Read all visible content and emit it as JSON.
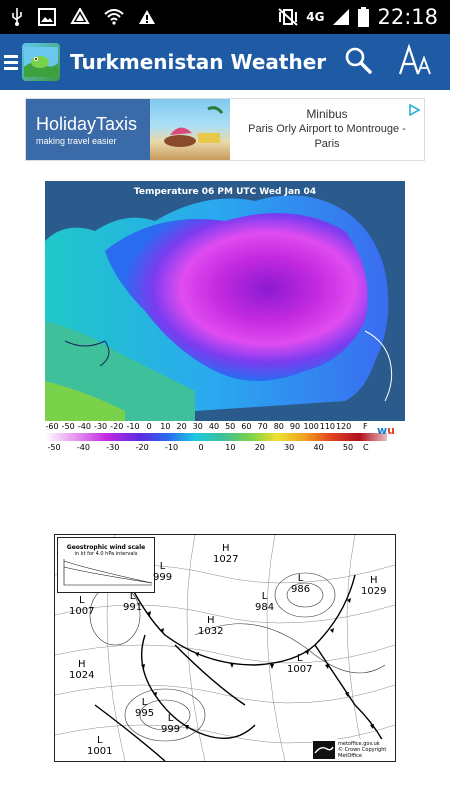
{
  "status_bar": {
    "time": "22:18",
    "network": "4G"
  },
  "app_bar": {
    "title": "Turkmenistan Weather"
  },
  "ad": {
    "brand": "HolidayTaxis",
    "tagline": "making travel easier",
    "title": "Minibus",
    "description": "Paris Orly Airport to Montrouge - Paris"
  },
  "temperature_map": {
    "title": "Temperature 06 PM UTC Wed Jan 04",
    "fahrenheit_ticks": [
      "-60",
      "-50",
      "-40",
      "-30",
      "-20",
      "-10",
      "0",
      "10",
      "20",
      "30",
      "40",
      "50",
      "60",
      "70",
      "80",
      "90",
      "100",
      "110",
      "120"
    ],
    "celsius_ticks": [
      "-50",
      "-40",
      "-30",
      "-20",
      "-10",
      "0",
      "10",
      "20",
      "30",
      "40",
      "50"
    ],
    "unit_f": "F",
    "unit_c": "C",
    "source_logo": "wu"
  },
  "pressure_chart": {
    "legend_title": "Geostrophic wind scale",
    "legend_sub": "in kt for 4.0 hPa intervals",
    "footer_org": "MetOffice",
    "footer_site": "metoffice.gov.uk",
    "footer_copy": "© Crown Copyright",
    "pressure_labels": [
      {
        "letter": "H",
        "value": "1027"
      },
      {
        "letter": "L",
        "value": "999"
      },
      {
        "letter": "L",
        "value": "991"
      },
      {
        "letter": "L",
        "value": "1007"
      },
      {
        "letter": "L",
        "value": "984"
      },
      {
        "letter": "L",
        "value": "986"
      },
      {
        "letter": "H",
        "value": "1029"
      },
      {
        "letter": "H",
        "value": "1032"
      },
      {
        "letter": "L",
        "value": "1007"
      },
      {
        "letter": "H",
        "value": "1024"
      },
      {
        "letter": "L",
        "value": "995"
      },
      {
        "letter": "L",
        "value": "999"
      },
      {
        "letter": "L",
        "value": "1001"
      }
    ]
  },
  "colors": {
    "app_bar": "#1f5aa4",
    "status_bar": "#000000",
    "ad_brand": "#3b6aa8"
  }
}
